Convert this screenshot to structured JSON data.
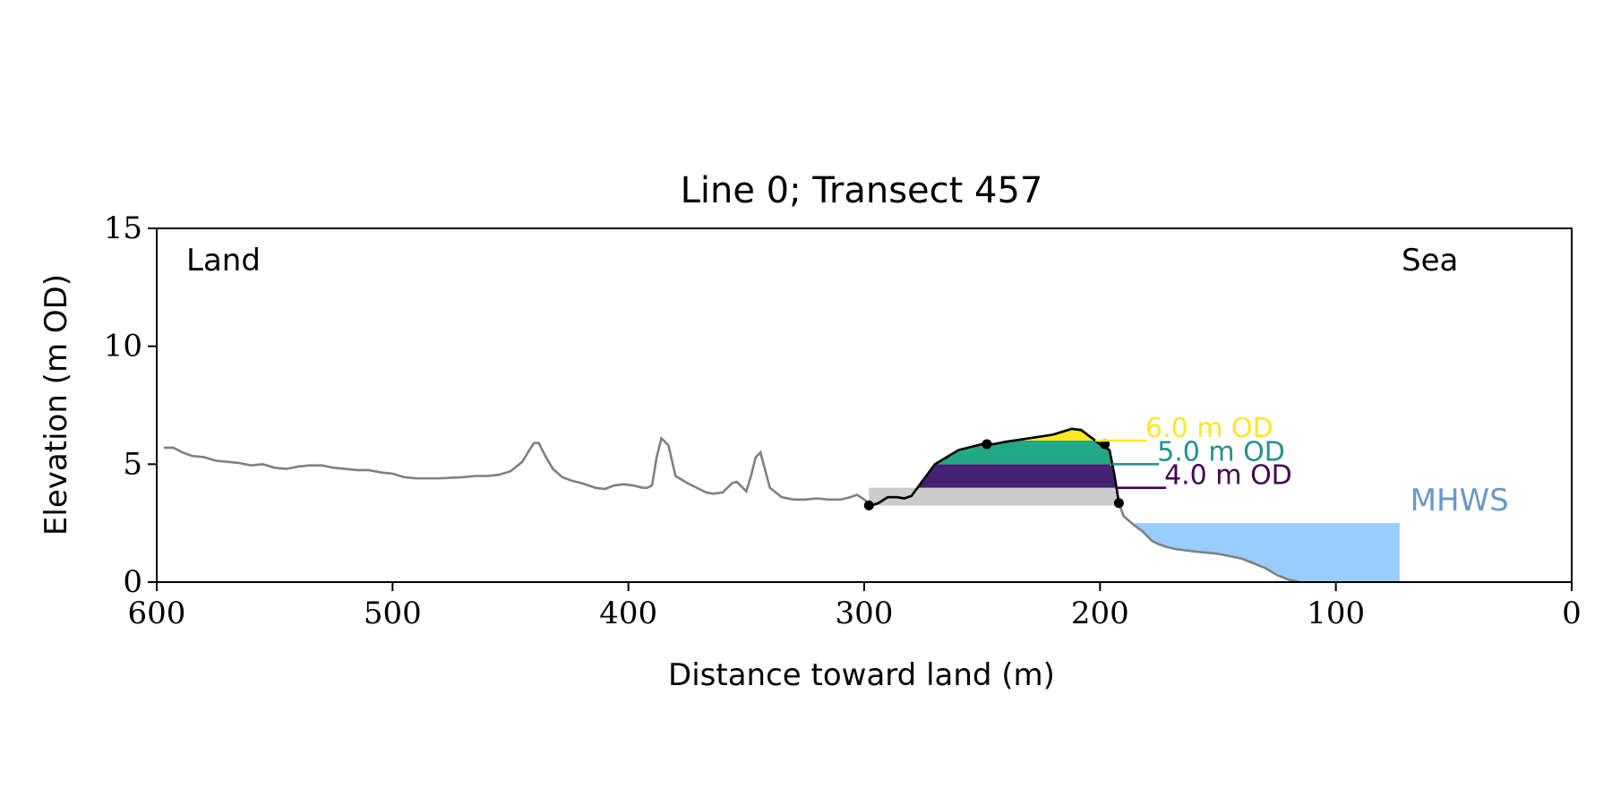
{
  "chart_data": {
    "type": "line",
    "title": "Line 0; Transect 457",
    "xlabel": "Distance toward land (m)",
    "ylabel": "Elevation (m OD)",
    "xlim": [
      600,
      0
    ],
    "ylim": [
      0,
      15
    ],
    "x_ticks": [
      "600",
      "500",
      "400",
      "300",
      "200",
      "100",
      "0"
    ],
    "y_ticks": [
      "0",
      "5",
      "10",
      "15"
    ],
    "grid": false,
    "corner_labels": {
      "left": "Land",
      "right": "Sea"
    },
    "profile": {
      "color": "#808080",
      "x": [
        597,
        593,
        589,
        585,
        580,
        575,
        570,
        565,
        560,
        555,
        550,
        545,
        540,
        535,
        530,
        525,
        520,
        515,
        510,
        505,
        500,
        495,
        490,
        480,
        470,
        465,
        460,
        455,
        450,
        445,
        442,
        440,
        438,
        435,
        432,
        428,
        424,
        420,
        417,
        414,
        410,
        406,
        402,
        398,
        394,
        392,
        390,
        388,
        386,
        383,
        380,
        375,
        370,
        367,
        364,
        360,
        356,
        354,
        352,
        350,
        348,
        346,
        344,
        340,
        335,
        330,
        325,
        320,
        315,
        310,
        306,
        303,
        300,
        297,
        294,
        290,
        286,
        283,
        280,
        270,
        260,
        250,
        245,
        240,
        230,
        220,
        212,
        208,
        200,
        196,
        194,
        192,
        190,
        186,
        182,
        178,
        175,
        172,
        168,
        164,
        160,
        155,
        150,
        145,
        140,
        130,
        125,
        120,
        115
      ],
      "y": [
        5.7,
        5.7,
        5.5,
        5.35,
        5.3,
        5.15,
        5.1,
        5.05,
        4.95,
        5.0,
        4.85,
        4.8,
        4.9,
        4.95,
        4.95,
        4.85,
        4.8,
        4.75,
        4.75,
        4.65,
        4.6,
        4.45,
        4.4,
        4.4,
        4.45,
        4.5,
        4.5,
        4.55,
        4.7,
        5.1,
        5.6,
        5.9,
        5.9,
        5.3,
        4.8,
        4.45,
        4.3,
        4.2,
        4.1,
        4.0,
        3.95,
        4.1,
        4.15,
        4.1,
        4.0,
        4.0,
        4.1,
        5.3,
        6.1,
        5.8,
        4.5,
        4.2,
        3.95,
        3.8,
        3.75,
        3.8,
        4.2,
        4.25,
        4.05,
        3.85,
        4.5,
        5.3,
        5.5,
        4.0,
        3.6,
        3.5,
        3.5,
        3.55,
        3.5,
        3.5,
        3.6,
        3.7,
        3.5,
        3.25,
        3.35,
        3.6,
        3.6,
        3.55,
        3.65,
        5.0,
        5.6,
        5.85,
        5.85,
        5.95,
        6.1,
        6.25,
        6.5,
        6.45,
        5.85,
        5.6,
        4.6,
        3.35,
        2.8,
        2.45,
        2.15,
        1.75,
        1.6,
        1.5,
        1.4,
        1.35,
        1.3,
        1.25,
        1.2,
        1.1,
        1.0,
        0.6,
        0.3,
        0.1,
        0.0
      ]
    },
    "highlight_line": {
      "color": "#000000",
      "marker_points": [
        {
          "x": 298,
          "y": 3.25
        },
        {
          "x": 248,
          "y": 5.85
        },
        {
          "x": 198,
          "y": 5.85
        },
        {
          "x": 192,
          "y": 3.35
        }
      ]
    },
    "base_band": {
      "color": "#cccccc",
      "y_bottom": 3.25,
      "y_top": 4.0,
      "x_from": 298,
      "x_to": 192
    },
    "contour_bands": [
      {
        "label": "4.0 m OD",
        "level": 4.0,
        "y_top": 5.0,
        "fill": "#482173",
        "label_color": "#440154",
        "line_to_x": 172
      },
      {
        "label": "5.0 m OD",
        "level": 5.0,
        "y_top": 6.0,
        "fill": "#22a884",
        "label_color": "#21918c",
        "line_to_x": 175
      },
      {
        "label": "6.0 m OD",
        "level": 6.0,
        "y_top": 7.0,
        "fill": "#fde725",
        "label_color": "#fde725",
        "line_to_x": 180
      }
    ],
    "mhws": {
      "label": "MHWS",
      "level": 2.5,
      "x_end": 73,
      "fill": "#99ccff",
      "label_color": "#6699cc"
    }
  }
}
